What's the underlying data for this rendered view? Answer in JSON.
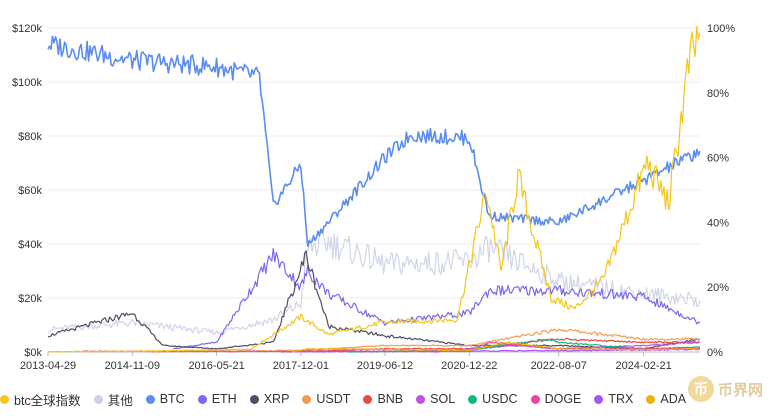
{
  "chart_data": {
    "type": "line",
    "y_left": {
      "ticks": [
        "$0k",
        "$20k",
        "$40k",
        "$60k",
        "$80k",
        "$100k",
        "$120k"
      ],
      "range": [
        0,
        120
      ]
    },
    "y_right": {
      "ticks": [
        "0%",
        "20%",
        "40%",
        "60%",
        "80%",
        "100%"
      ],
      "range": [
        0,
        100
      ]
    },
    "x_ticks": [
      "2013-04-29",
      "2014-11-09",
      "2016-05-21",
      "2017-12-01",
      "2019-06-12",
      "2020-12-22",
      "2022-08-07",
      "2024-02-21"
    ],
    "x_range": [
      "2013-04-29",
      "2025-03-01"
    ],
    "grid": "horizontal",
    "legend_position": "bottom",
    "series": [
      {
        "name": "btc全球指数",
        "axis": "left",
        "color": "#f5c518",
        "x": [
          "2013-04-29",
          "2015-01-01",
          "2017-01-01",
          "2017-12-01",
          "2018-06-01",
          "2019-06-12",
          "2020-10-01",
          "2021-04-15",
          "2021-07-20",
          "2021-11-10",
          "2022-06-18",
          "2022-11-21",
          "2023-06-01",
          "2024-03-14",
          "2024-08-05",
          "2024-12-17",
          "2025-03-01"
        ],
        "values": [
          0.1,
          0.3,
          1,
          13,
          6.5,
          11,
          12,
          60,
          30,
          65,
          20,
          16,
          27,
          70,
          55,
          106,
          118
        ]
      },
      {
        "name": "其他",
        "axis": "right",
        "color": "#ccd0e6",
        "x": [
          "2013-04-29",
          "2014-11-09",
          "2016-05-21",
          "2017-06-01",
          "2017-12-01",
          "2018-01-15",
          "2018-06-01",
          "2019-06-12",
          "2020-12-22",
          "2021-05-01",
          "2022-08-07",
          "2024-02-21",
          "2025-03-01"
        ],
        "values": [
          7,
          9,
          6,
          10,
          15,
          32,
          34,
          27,
          28,
          32,
          22,
          18,
          16
        ]
      },
      {
        "name": "BTC",
        "axis": "right",
        "color": "#5b8def",
        "x": [
          "2013-04-29",
          "2014-11-09",
          "2016-05-21",
          "2017-03-01",
          "2017-06-01",
          "2017-12-01",
          "2018-01-15",
          "2018-06-01",
          "2019-06-12",
          "2019-12-01",
          "2020-12-22",
          "2021-05-01",
          "2022-08-07",
          "2024-02-21",
          "2025-03-01"
        ],
        "values": [
          95,
          90,
          88,
          85,
          45,
          58,
          33,
          40,
          60,
          67,
          66,
          42,
          40,
          53,
          62
        ]
      },
      {
        "name": "ETH",
        "axis": "right",
        "color": "#7b68ee",
        "x": [
          "2015-08-07",
          "2016-05-21",
          "2017-06-01",
          "2017-12-01",
          "2018-01-15",
          "2018-06-01",
          "2019-06-12",
          "2020-12-22",
          "2021-05-01",
          "2022-08-07",
          "2024-02-21",
          "2025-03-01"
        ],
        "values": [
          1,
          3,
          30,
          20,
          25,
          18,
          9,
          12,
          19,
          19,
          17,
          9
        ]
      },
      {
        "name": "XRP",
        "axis": "right",
        "color": "#4d4d66",
        "x": [
          "2013-04-29",
          "2014-11-09",
          "2015-06-01",
          "2016-05-21",
          "2017-06-01",
          "2018-01-05",
          "2018-06-01",
          "2019-06-12",
          "2020-12-22",
          "2022-08-07",
          "2024-02-21",
          "2025-03-01"
        ],
        "values": [
          5,
          12,
          2,
          1,
          3,
          30,
          8,
          5,
          2,
          2,
          1,
          4
        ]
      },
      {
        "name": "USDT",
        "axis": "right",
        "color": "#f39c50",
        "x": [
          "2015-03-01",
          "2017-12-01",
          "2019-06-12",
          "2020-12-22",
          "2022-08-07",
          "2024-02-21",
          "2025-03-01"
        ],
        "values": [
          0,
          0.5,
          2,
          2,
          7,
          4,
          4
        ]
      },
      {
        "name": "BNB",
        "axis": "right",
        "color": "#e74c3c",
        "x": [
          "2017-07-25",
          "2019-06-12",
          "2020-12-22",
          "2022-08-07",
          "2024-02-21",
          "2025-03-01"
        ],
        "values": [
          0,
          1,
          1,
          4,
          3,
          3
        ]
      },
      {
        "name": "SOL",
        "axis": "right",
        "color": "#c050e0",
        "x": [
          "2020-04-10",
          "2021-11-01",
          "2022-08-07",
          "2024-02-21",
          "2025-03-01"
        ],
        "values": [
          0,
          2,
          1,
          2,
          3
        ]
      },
      {
        "name": "USDC",
        "axis": "right",
        "color": "#10b981",
        "x": [
          "2018-10-01",
          "2020-12-22",
          "2022-06-01",
          "2022-08-07",
          "2024-02-21",
          "2025-03-01"
        ],
        "values": [
          0,
          0.5,
          4,
          3,
          1,
          1.5
        ]
      },
      {
        "name": "DOGE",
        "axis": "right",
        "color": "#ec4899",
        "x": [
          "2013-12-15",
          "2020-12-22",
          "2021-05-08",
          "2022-08-07",
          "2024-02-21",
          "2025-03-01"
        ],
        "values": [
          0.2,
          0.2,
          3,
          1,
          1,
          1.2
        ]
      },
      {
        "name": "TRX",
        "axis": "right",
        "color": "#a855f7",
        "x": [
          "2017-09-13",
          "2020-12-22",
          "2022-08-07",
          "2024-02-21",
          "2025-03-01"
        ],
        "values": [
          0,
          0.3,
          0.4,
          0.6,
          0.8
        ]
      },
      {
        "name": "ADA",
        "axis": "right",
        "color": "#eab308",
        "x": [
          "2017-10-01",
          "2018-01-05",
          "2020-12-22",
          "2021-09-01",
          "2022-08-07",
          "2024-02-21",
          "2025-03-01"
        ],
        "values": [
          0,
          1,
          0.5,
          3,
          1,
          0.7,
          1
        ]
      }
    ]
  },
  "legend": {
    "items": [
      {
        "label": "btc全球指数",
        "color": "#f5c518"
      },
      {
        "label": "其他",
        "color": "#ccd0e6"
      },
      {
        "label": "BTC",
        "color": "#5b8def"
      },
      {
        "label": "ETH",
        "color": "#7b68ee"
      },
      {
        "label": "XRP",
        "color": "#4d4d66"
      },
      {
        "label": "USDT",
        "color": "#f39c50"
      },
      {
        "label": "BNB",
        "color": "#e74c3c"
      },
      {
        "label": "SOL",
        "color": "#c050e0"
      },
      {
        "label": "USDC",
        "color": "#10b981"
      },
      {
        "label": "DOGE",
        "color": "#ec4899"
      },
      {
        "label": "TRX",
        "color": "#a855f7"
      },
      {
        "label": "ADA",
        "color": "#eab308"
      }
    ]
  },
  "watermark": {
    "text": "币界网",
    "icon": "coin-logo-icon"
  }
}
